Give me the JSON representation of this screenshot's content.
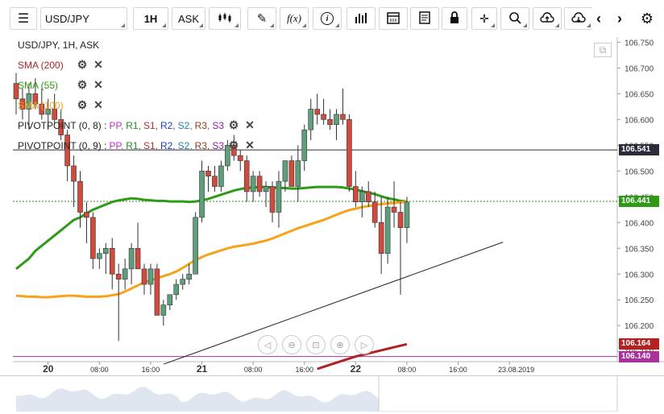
{
  "toolbar": {
    "menu_icon": "hamburger-icon",
    "symbol": "USD/JPY",
    "timeframe": "1H",
    "price_type": "ASK",
    "icons": [
      "candlestick-icon",
      "pencil-icon",
      "function-icon",
      "info-icon",
      "bar-chart-icon",
      "calendar-icon",
      "document-icon",
      "lock-icon",
      "crosshair-icon",
      "zoom-icon",
      "cloud-upload-icon",
      "cloud-download-icon",
      "chevron-left-icon",
      "chevron-right-icon",
      "gear-icon"
    ],
    "function_label": "f(x)"
  },
  "chart_title": "USD/JPY, 1H, ASK",
  "indicators": [
    {
      "label": "SMA (200)",
      "color": "#b22222"
    },
    {
      "label": "SMA (55)",
      "color": "#2e9a18"
    },
    {
      "label": "SMA (100)",
      "color": "#f7a21b"
    }
  ],
  "pivots": [
    {
      "label": "PIVOTPOINT (0, 8)",
      "params": [
        {
          "t": "PP",
          "c": "#c030c0"
        },
        {
          "t": "R1",
          "c": "#209020"
        },
        {
          "t": "S1",
          "c": "#b03030"
        },
        {
          "t": "R2",
          "c": "#2040c0"
        },
        {
          "t": "S2",
          "c": "#2080b0"
        },
        {
          "t": "R3",
          "c": "#904020"
        },
        {
          "t": "S3",
          "c": "#9020a0"
        }
      ]
    },
    {
      "label": "PIVOTPOINT (0, 9)",
      "params": [
        {
          "t": "PP",
          "c": "#c030c0"
        },
        {
          "t": "R1",
          "c": "#209020"
        },
        {
          "t": "S1",
          "c": "#b03030"
        },
        {
          "t": "R2",
          "c": "#2040c0"
        },
        {
          "t": "S2",
          "c": "#2080b0"
        },
        {
          "t": "R3",
          "c": "#904020"
        },
        {
          "t": "S3",
          "c": "#9020a0"
        }
      ]
    }
  ],
  "price_tags": [
    {
      "value": "106.541",
      "bg": "#2b2b3a"
    },
    {
      "value": "106.441",
      "bg": "#2e9a18"
    },
    {
      "value": "106.164",
      "bg": "#b22222"
    },
    {
      "value": "106.140",
      "bg": "#a8329a"
    }
  ],
  "chart_data": {
    "type": "candlestick",
    "y_ticks": [
      "106.750",
      "106.700",
      "106.650",
      "106.600",
      "106.550",
      "106.500",
      "106.450",
      "106.400",
      "106.350",
      "106.300",
      "106.250",
      "106.200",
      "106.150"
    ],
    "ylim": [
      106.13,
      106.76
    ],
    "x_ticks": [
      {
        "label": "20",
        "bold": true,
        "i": 5
      },
      {
        "label": "08:00",
        "i": 13
      },
      {
        "label": "16:00",
        "i": 21
      },
      {
        "label": "21",
        "bold": true,
        "i": 29
      },
      {
        "label": "08:00",
        "i": 37
      },
      {
        "label": "16:00",
        "i": 45
      },
      {
        "label": "22",
        "bold": true,
        "i": 53
      },
      {
        "label": "08:00",
        "i": 61
      },
      {
        "label": "16:00",
        "i": 69
      },
      {
        "label": "23.08.2019",
        "i": 77
      }
    ],
    "candles": [
      [
        106.67,
        106.69,
        106.61,
        106.64
      ],
      [
        106.64,
        106.66,
        106.6,
        106.62
      ],
      [
        106.62,
        106.67,
        106.58,
        106.65
      ],
      [
        106.65,
        106.68,
        106.62,
        106.63
      ],
      [
        106.63,
        106.66,
        106.6,
        106.61
      ],
      [
        106.61,
        106.64,
        106.58,
        106.62
      ],
      [
        106.62,
        106.65,
        106.59,
        106.6
      ],
      [
        106.6,
        106.62,
        106.56,
        106.57
      ],
      [
        106.57,
        106.58,
        106.48,
        106.51
      ],
      [
        106.51,
        106.53,
        106.43,
        106.48
      ],
      [
        106.48,
        106.5,
        106.39,
        106.42
      ],
      [
        106.42,
        106.44,
        106.36,
        106.41
      ],
      [
        106.41,
        106.42,
        106.31,
        106.33
      ],
      [
        106.33,
        106.35,
        106.31,
        106.34
      ],
      [
        106.34,
        106.36,
        106.3,
        106.35
      ],
      [
        106.35,
        106.37,
        106.27,
        106.3
      ],
      [
        106.3,
        106.32,
        106.17,
        106.29
      ],
      [
        106.29,
        106.33,
        106.27,
        106.31
      ],
      [
        106.31,
        106.36,
        106.28,
        106.35
      ],
      [
        106.35,
        106.4,
        106.31,
        106.31
      ],
      [
        106.31,
        106.32,
        106.26,
        106.28
      ],
      [
        106.28,
        106.32,
        106.26,
        106.31
      ],
      [
        106.31,
        106.32,
        106.22,
        106.22
      ],
      [
        106.22,
        106.25,
        106.2,
        106.24
      ],
      [
        106.24,
        106.26,
        106.23,
        106.26
      ],
      [
        106.26,
        106.29,
        106.25,
        106.28
      ],
      [
        106.28,
        106.3,
        106.27,
        106.29
      ],
      [
        106.29,
        106.32,
        106.28,
        106.3
      ],
      [
        106.3,
        106.42,
        106.3,
        106.41
      ],
      [
        106.41,
        106.52,
        106.4,
        106.5
      ],
      [
        106.5,
        106.51,
        106.46,
        106.49
      ],
      [
        106.49,
        106.51,
        106.46,
        106.47
      ],
      [
        106.47,
        106.52,
        106.46,
        106.51
      ],
      [
        106.51,
        106.56,
        106.5,
        106.55
      ],
      [
        106.55,
        106.57,
        106.52,
        106.53
      ],
      [
        106.53,
        106.54,
        106.5,
        106.52
      ],
      [
        106.52,
        106.53,
        106.44,
        106.46
      ],
      [
        106.46,
        106.5,
        106.44,
        106.49
      ],
      [
        106.49,
        106.5,
        106.45,
        106.46
      ],
      [
        106.46,
        106.48,
        106.43,
        106.47
      ],
      [
        106.47,
        106.48,
        106.4,
        106.42
      ],
      [
        106.42,
        106.5,
        106.39,
        106.48
      ],
      [
        106.48,
        106.52,
        106.46,
        106.52
      ],
      [
        106.52,
        106.53,
        106.47,
        106.47
      ],
      [
        106.47,
        106.55,
        106.44,
        106.52
      ],
      [
        106.52,
        106.59,
        106.5,
        106.58
      ],
      [
        106.58,
        106.64,
        106.56,
        106.62
      ],
      [
        106.62,
        106.65,
        106.59,
        106.61
      ],
      [
        106.61,
        106.64,
        106.59,
        106.6
      ],
      [
        106.6,
        106.62,
        106.58,
        106.59
      ],
      [
        106.59,
        106.62,
        106.56,
        106.61
      ],
      [
        106.61,
        106.66,
        106.59,
        106.6
      ],
      [
        106.6,
        106.61,
        106.46,
        106.47
      ],
      [
        106.47,
        106.5,
        106.43,
        106.44
      ],
      [
        106.44,
        106.47,
        106.41,
        106.46
      ],
      [
        106.46,
        106.48,
        106.43,
        106.44
      ],
      [
        106.44,
        106.46,
        106.39,
        106.4
      ],
      [
        106.4,
        106.45,
        106.3,
        106.34
      ],
      [
        106.34,
        106.45,
        106.32,
        106.43
      ],
      [
        106.43,
        106.48,
        106.39,
        106.42
      ],
      [
        106.42,
        106.44,
        106.26,
        106.39
      ],
      [
        106.39,
        106.45,
        106.36,
        106.44
      ]
    ],
    "series": [
      {
        "name": "SMA (55)",
        "color": "#2e9a18",
        "values": [
          106.31,
          106.32,
          106.33,
          106.345,
          106.355,
          106.365,
          106.375,
          106.385,
          106.395,
          106.405,
          106.41,
          106.418,
          106.425,
          106.43,
          106.435,
          106.44,
          106.443,
          106.445,
          106.447,
          106.446,
          106.444,
          106.443,
          106.442,
          106.442,
          106.441,
          106.441,
          106.441,
          106.44,
          106.441,
          106.443,
          106.446,
          106.45,
          106.454,
          106.458,
          106.462,
          106.465,
          106.467,
          106.468,
          106.469,
          106.469,
          106.468,
          106.467,
          106.467,
          106.466,
          106.466,
          106.467,
          106.468,
          106.469,
          106.469,
          106.469,
          106.469,
          106.468,
          106.466,
          106.464,
          106.461,
          106.458,
          106.455,
          106.451,
          106.447,
          106.445,
          106.442,
          106.441
        ]
      },
      {
        "name": "SMA (100)",
        "color": "#f7a21b",
        "values": [
          106.258,
          106.257,
          106.256,
          106.256,
          106.255,
          106.255,
          106.256,
          106.257,
          106.258,
          106.258,
          106.257,
          106.256,
          106.256,
          106.256,
          106.257,
          106.259,
          106.261,
          106.266,
          106.272,
          106.278,
          106.284,
          106.288,
          106.292,
          106.296,
          106.3,
          106.305,
          106.312,
          106.32,
          106.327,
          106.333,
          106.338,
          106.342,
          106.346,
          106.35,
          106.353,
          106.355,
          106.357,
          106.359,
          106.362,
          106.365,
          106.369,
          106.374,
          106.379,
          106.384,
          106.389,
          106.393,
          106.397,
          106.401,
          106.405,
          106.41,
          106.415,
          106.42,
          106.424,
          106.427,
          106.43,
          106.432,
          106.434,
          106.436,
          106.437,
          106.438,
          106.439,
          106.441
        ]
      },
      {
        "name": "SMA (200)",
        "color": "#b22222",
        "values": [
          null,
          null,
          null,
          null,
          null,
          null,
          null,
          null,
          null,
          null,
          null,
          null,
          null,
          null,
          null,
          null,
          null,
          null,
          null,
          null,
          null,
          null,
          null,
          null,
          null,
          null,
          null,
          null,
          null,
          null,
          null,
          null,
          null,
          null,
          null,
          null,
          null,
          null,
          null,
          null,
          null,
          null,
          null,
          null,
          null,
          null,
          null,
          106.116,
          106.12,
          106.124,
          106.128,
          106.132,
          106.136,
          106.14,
          106.143,
          106.146,
          106.149,
          106.152,
          106.155,
          106.158,
          106.161,
          106.164
        ]
      }
    ],
    "horizontal_lines": [
      {
        "value": 106.541,
        "color": "#2b2b3a",
        "style": "solid"
      },
      {
        "value": 106.441,
        "color": "#2e9a18",
        "style": "dotted"
      },
      {
        "value": 106.14,
        "color": "#a8329a",
        "style": "solid"
      }
    ],
    "trendline": {
      "from": [
        23,
        106.125
      ],
      "to": [
        76,
        106.362
      ],
      "color": "#222"
    }
  },
  "navigator": {
    "icons": [
      "pan-left-icon",
      "zoom-out-icon",
      "reset-zoom-icon",
      "zoom-in-icon",
      "pan-right-icon"
    ],
    "glyphs": [
      "◁",
      "⊖",
      "⊡",
      "⊕",
      "▷"
    ]
  },
  "popout_icon": "popout-icon"
}
